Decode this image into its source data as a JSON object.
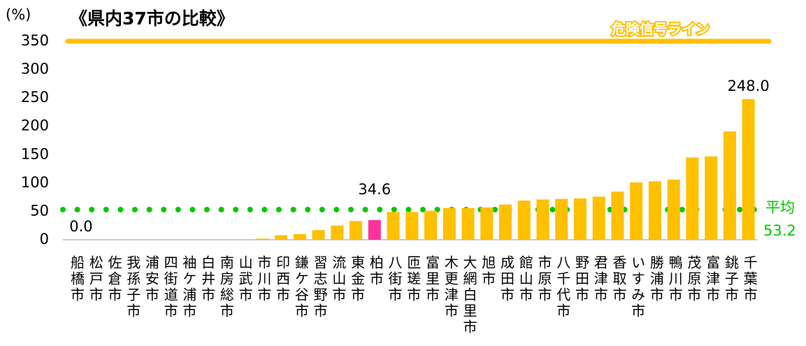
{
  "chart_data": {
    "type": "bar",
    "title": "《県内37市の比較》",
    "y_label": "(%)",
    "categories": [
      "船橋市",
      "松戸市",
      "佐倉市",
      "我孫子市",
      "浦安市",
      "四街道市",
      "袖ケ浦市",
      "白井市",
      "南房総市",
      "山武市",
      "市川市",
      "印西市",
      "鎌ケ谷市",
      "習志野市",
      "流山市",
      "東金市",
      "柏市",
      "八街市",
      "匝瑳市",
      "富里市",
      "木更津市",
      "大網白里市",
      "旭市",
      "成田市",
      "館山市",
      "市原市",
      "八千代市",
      "野田市",
      "君津市",
      "香取市",
      "いすみ市",
      "勝浦市",
      "鴨川市",
      "茂原市",
      "富津市",
      "銚子市",
      "千葉市"
    ],
    "values": [
      0,
      0,
      0,
      0,
      0,
      0,
      0,
      0,
      0,
      0,
      2,
      8,
      10,
      17,
      25,
      33,
      34.6,
      49,
      49,
      51,
      56,
      56,
      57,
      62,
      69,
      71,
      72,
      73,
      76,
      85,
      101,
      103,
      106,
      145,
      147,
      191,
      248
    ],
    "value_labels": [
      "0.0",
      null,
      null,
      null,
      null,
      null,
      null,
      null,
      null,
      null,
      null,
      null,
      null,
      null,
      null,
      null,
      "34.6",
      null,
      null,
      null,
      null,
      null,
      null,
      null,
      null,
      null,
      null,
      null,
      null,
      null,
      null,
      null,
      null,
      null,
      null,
      null,
      "248.0"
    ],
    "colors": [
      "#ffc000",
      "#ffc000",
      "#ffc000",
      "#ffc000",
      "#ffc000",
      "#ffc000",
      "#ffc000",
      "#ffc000",
      "#ffc000",
      "#ffc000",
      "#ffc000",
      "#ffc000",
      "#ffc000",
      "#ffc000",
      "#ffc000",
      "#ffc000",
      "#ff3399",
      "#ffc000",
      "#ffc000",
      "#ffc000",
      "#ffc000",
      "#ffc000",
      "#ffc000",
      "#ffc000",
      "#ffc000",
      "#ffc000",
      "#ffc000",
      "#ffc000",
      "#ffc000",
      "#ffc000",
      "#ffc000",
      "#ffc000",
      "#ffc000",
      "#ffc000",
      "#ffc000",
      "#ffc000",
      "#ffc000"
    ],
    "ylim": [
      0,
      350
    ],
    "yticks": [
      0,
      50,
      100,
      150,
      200,
      250,
      300,
      350
    ],
    "grid": false,
    "reference_lines": [
      {
        "name": "危険信号ライン",
        "value": 350,
        "color": "#ffc000"
      },
      {
        "name": "平均",
        "value": 53.2,
        "color": "#00c800"
      }
    ]
  }
}
